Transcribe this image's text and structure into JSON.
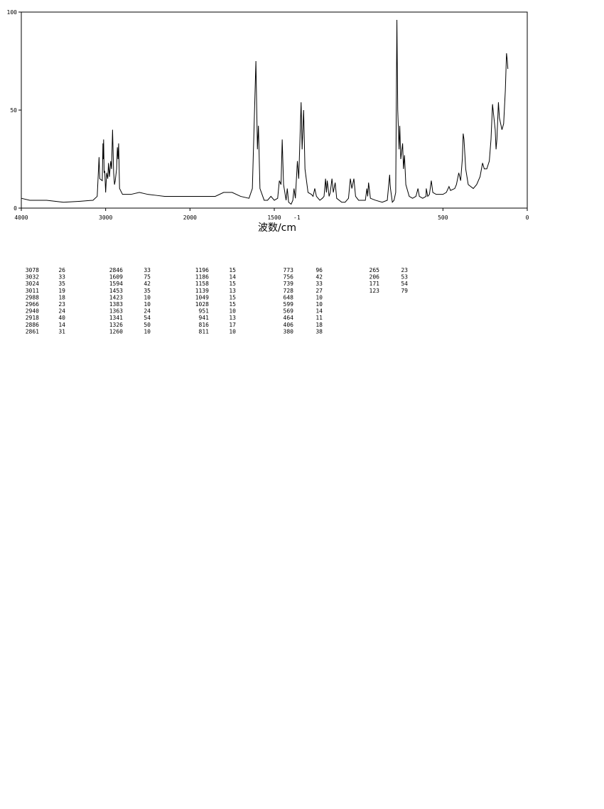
{
  "chart_data": {
    "type": "line",
    "xlabel": "波数/cm",
    "xlabel_superscript": "-1",
    "xlim": [
      4000,
      0
    ],
    "xbreak": 2000,
    "xticks": [
      4000,
      3000,
      2000,
      1500,
      500,
      0
    ],
    "ylim": [
      0,
      100
    ],
    "yticks": [
      0,
      50,
      100
    ],
    "color": "#000000",
    "x": [
      4000,
      3900,
      3700,
      3500,
      3300,
      3150,
      3100,
      3078,
      3070,
      3040,
      3032,
      3028,
      3024,
      3018,
      3011,
      3000,
      2988,
      2975,
      2966,
      2955,
      2940,
      2930,
      2918,
      2905,
      2895,
      2886,
      2870,
      2861,
      2853,
      2846,
      2835,
      2800,
      2700,
      2600,
      2500,
      2400,
      2300,
      2200,
      2100,
      2000,
      1900,
      1850,
      1800,
      1750,
      1700,
      1650,
      1630,
      1609,
      1600,
      1594,
      1585,
      1560,
      1540,
      1520,
      1500,
      1480,
      1470,
      1460,
      1453,
      1445,
      1430,
      1423,
      1415,
      1400,
      1390,
      1383,
      1375,
      1363,
      1355,
      1341,
      1335,
      1326,
      1318,
      1300,
      1280,
      1270,
      1260,
      1250,
      1230,
      1215,
      1205,
      1196,
      1191,
      1186,
      1175,
      1168,
      1158,
      1150,
      1139,
      1130,
      1100,
      1080,
      1060,
      1049,
      1040,
      1028,
      1018,
      1000,
      980,
      960,
      951,
      946,
      941,
      930,
      900,
      860,
      830,
      816,
      813,
      811,
      800,
      790,
      780,
      773,
      768,
      760,
      756,
      750,
      739,
      734,
      728,
      720,
      700,
      680,
      660,
      648,
      640,
      620,
      600,
      599,
      590,
      580,
      569,
      560,
      540,
      500,
      480,
      464,
      455,
      430,
      420,
      406,
      395,
      385,
      380,
      375,
      365,
      350,
      320,
      300,
      280,
      265,
      255,
      240,
      225,
      215,
      206,
      200,
      190,
      185,
      180,
      171,
      165,
      150,
      140,
      130,
      123,
      118,
      115
    ],
    "values": [
      5,
      4,
      4,
      3,
      3.5,
      4,
      6,
      26,
      15,
      14,
      33,
      25,
      35,
      18,
      19,
      8,
      18,
      15,
      23,
      16,
      24,
      20,
      40,
      18,
      12,
      14,
      20,
      31,
      25,
      33,
      10,
      7,
      7,
      8,
      7,
      6.5,
      6,
      6,
      6,
      6,
      6,
      6,
      8,
      8,
      6,
      5,
      10,
      75,
      30,
      42,
      10,
      4,
      4,
      6,
      4,
      5,
      14,
      12,
      35,
      12,
      4,
      10,
      3,
      2,
      4,
      10,
      5,
      24,
      15,
      54,
      30,
      50,
      20,
      8,
      7,
      6,
      10,
      6,
      4,
      5,
      6,
      15,
      8,
      14,
      6,
      8,
      15,
      8,
      13,
      5,
      3,
      3,
      5,
      15,
      10,
      15,
      6,
      4,
      4,
      4,
      10,
      6,
      13,
      5,
      4,
      3,
      4,
      17,
      12,
      10,
      3,
      4,
      8,
      96,
      50,
      30,
      42,
      25,
      33,
      20,
      27,
      12,
      6,
      5,
      6,
      10,
      6,
      5,
      6,
      10,
      6,
      7,
      14,
      8,
      7,
      7,
      8,
      11,
      9,
      10,
      12,
      18,
      14,
      25,
      38,
      35,
      20,
      12,
      10,
      12,
      16,
      23,
      20,
      20,
      24,
      35,
      53,
      48,
      40,
      30,
      35,
      54,
      46,
      40,
      43,
      60,
      79,
      75,
      71
    ]
  },
  "peak_table": {
    "columns": [
      [
        [
          "3078",
          "26"
        ],
        [
          "3032",
          "33"
        ],
        [
          "3024",
          "35"
        ],
        [
          "3011",
          "19"
        ],
        [
          "2988",
          "18"
        ],
        [
          "2966",
          "23"
        ],
        [
          "2940",
          "24"
        ],
        [
          "2918",
          "40"
        ],
        [
          "2886",
          "14"
        ],
        [
          "2861",
          "31"
        ]
      ],
      [
        [
          "2846",
          "33"
        ],
        [
          "1609",
          "75"
        ],
        [
          "1594",
          "42"
        ],
        [
          "1453",
          "35"
        ],
        [
          "1423",
          "10"
        ],
        [
          "1383",
          "10"
        ],
        [
          "1363",
          "24"
        ],
        [
          "1341",
          "54"
        ],
        [
          "1326",
          "50"
        ],
        [
          "1260",
          "10"
        ]
      ],
      [
        [
          "1196",
          "15"
        ],
        [
          "1186",
          "14"
        ],
        [
          "1158",
          "15"
        ],
        [
          "1139",
          "13"
        ],
        [
          "1049",
          "15"
        ],
        [
          "1028",
          "15"
        ],
        [
          "951",
          "10"
        ],
        [
          "941",
          "13"
        ],
        [
          "816",
          "17"
        ],
        [
          "811",
          "10"
        ]
      ],
      [
        [
          "773",
          "96"
        ],
        [
          "756",
          "42"
        ],
        [
          "739",
          "33"
        ],
        [
          "728",
          "27"
        ],
        [
          "648",
          "10"
        ],
        [
          "599",
          "10"
        ],
        [
          "569",
          "14"
        ],
        [
          "464",
          "11"
        ],
        [
          "406",
          "18"
        ],
        [
          "380",
          "38"
        ]
      ],
      [
        [
          "265",
          "23"
        ],
        [
          "206",
          "53"
        ],
        [
          "171",
          "54"
        ],
        [
          "123",
          "79"
        ]
      ]
    ]
  }
}
